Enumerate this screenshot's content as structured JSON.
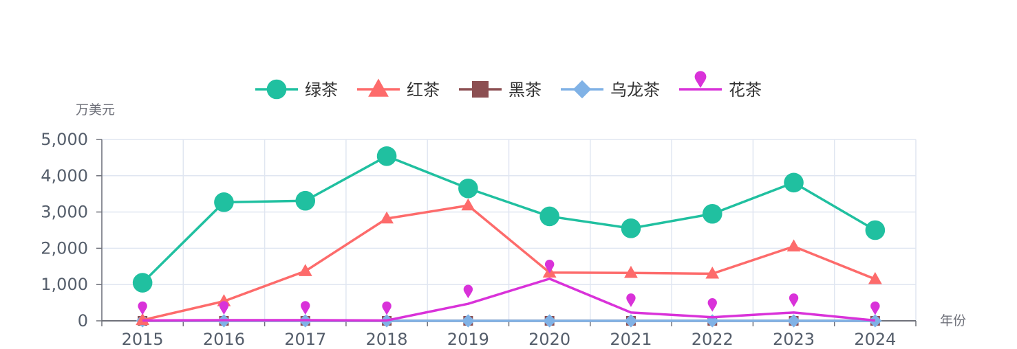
{
  "chart_data": {
    "type": "line",
    "ylabel": "万美元",
    "xlabel": "年份",
    "categories": [
      "2015",
      "2016",
      "2017",
      "2018",
      "2019",
      "2020",
      "2021",
      "2022",
      "2023",
      "2024"
    ],
    "ylim": [
      0,
      5000
    ],
    "yticks": [
      0,
      1000,
      2000,
      3000,
      4000,
      5000
    ],
    "ytick_labels": [
      "0",
      "1,000",
      "2,000",
      "3,000",
      "4,000",
      "5,000"
    ],
    "grid": true,
    "legend_position": "top-center",
    "series": [
      {
        "name": "绿茶",
        "color": "#20c0a0",
        "marker": "circle",
        "values": [
          1050,
          3270,
          3310,
          4540,
          3650,
          2880,
          2550,
          2950,
          3810,
          2500
        ]
      },
      {
        "name": "红茶",
        "color": "#fd6b6b",
        "marker": "triangle",
        "values": [
          20,
          540,
          1370,
          2820,
          3180,
          1330,
          1320,
          1300,
          2050,
          1150
        ]
      },
      {
        "name": "黑茶",
        "color": "#8c4f52",
        "marker": "square",
        "values": [
          0,
          0,
          0,
          0,
          0,
          0,
          0,
          0,
          0,
          0
        ]
      },
      {
        "name": "乌龙茶",
        "color": "#80b2e6",
        "marker": "diamond",
        "values": [
          0,
          0,
          0,
          0,
          0,
          0,
          0,
          0,
          0,
          0
        ]
      },
      {
        "name": "花茶",
        "color": "#d932d9",
        "marker": "pin",
        "values": [
          10,
          20,
          20,
          10,
          470,
          1160,
          230,
          100,
          230,
          10
        ]
      }
    ]
  }
}
